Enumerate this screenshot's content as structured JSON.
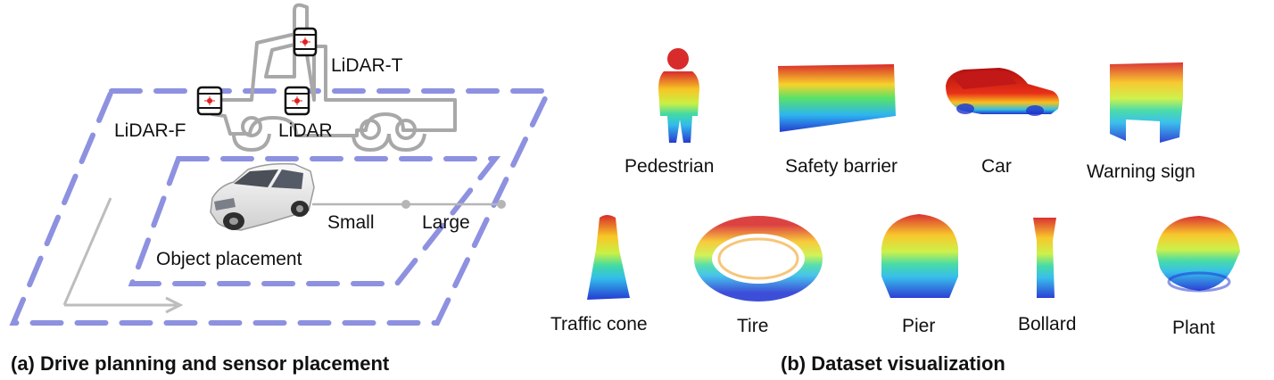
{
  "panel_a": {
    "caption": "(a) Drive planning and sensor placement",
    "sensors": {
      "top": "LiDAR-T",
      "front": "LiDAR-F",
      "middle": "LiDAR"
    },
    "object_placement": "Object placement",
    "zone_small": "Small",
    "zone_large": "Large",
    "colors": {
      "dashed_zone": "#8d91e0",
      "truck_outline": "#a8a8a8",
      "drive_arrow": "#bdbdbd"
    }
  },
  "panel_b": {
    "caption": "(b) Dataset visualization",
    "objects": [
      {
        "label": "Pedestrian",
        "icon": "pedestrian-point-cloud"
      },
      {
        "label": "Safety barrier",
        "icon": "safety-barrier-point-cloud"
      },
      {
        "label": "Car",
        "icon": "car-point-cloud"
      },
      {
        "label": "Warning sign",
        "icon": "warning-sign-point-cloud"
      },
      {
        "label": "Traffic cone",
        "icon": "traffic-cone-point-cloud"
      },
      {
        "label": "Tire",
        "icon": "tire-point-cloud"
      },
      {
        "label": "Pier",
        "icon": "pier-point-cloud"
      },
      {
        "label": "Bollard",
        "icon": "bollard-point-cloud"
      },
      {
        "label": "Plant",
        "icon": "plant-point-cloud"
      }
    ],
    "colors": {
      "high": "#d62020",
      "mid_high": "#f7e21a",
      "mid": "#37d36a",
      "mid_low": "#27b8ea",
      "low": "#1a2fd0"
    }
  }
}
